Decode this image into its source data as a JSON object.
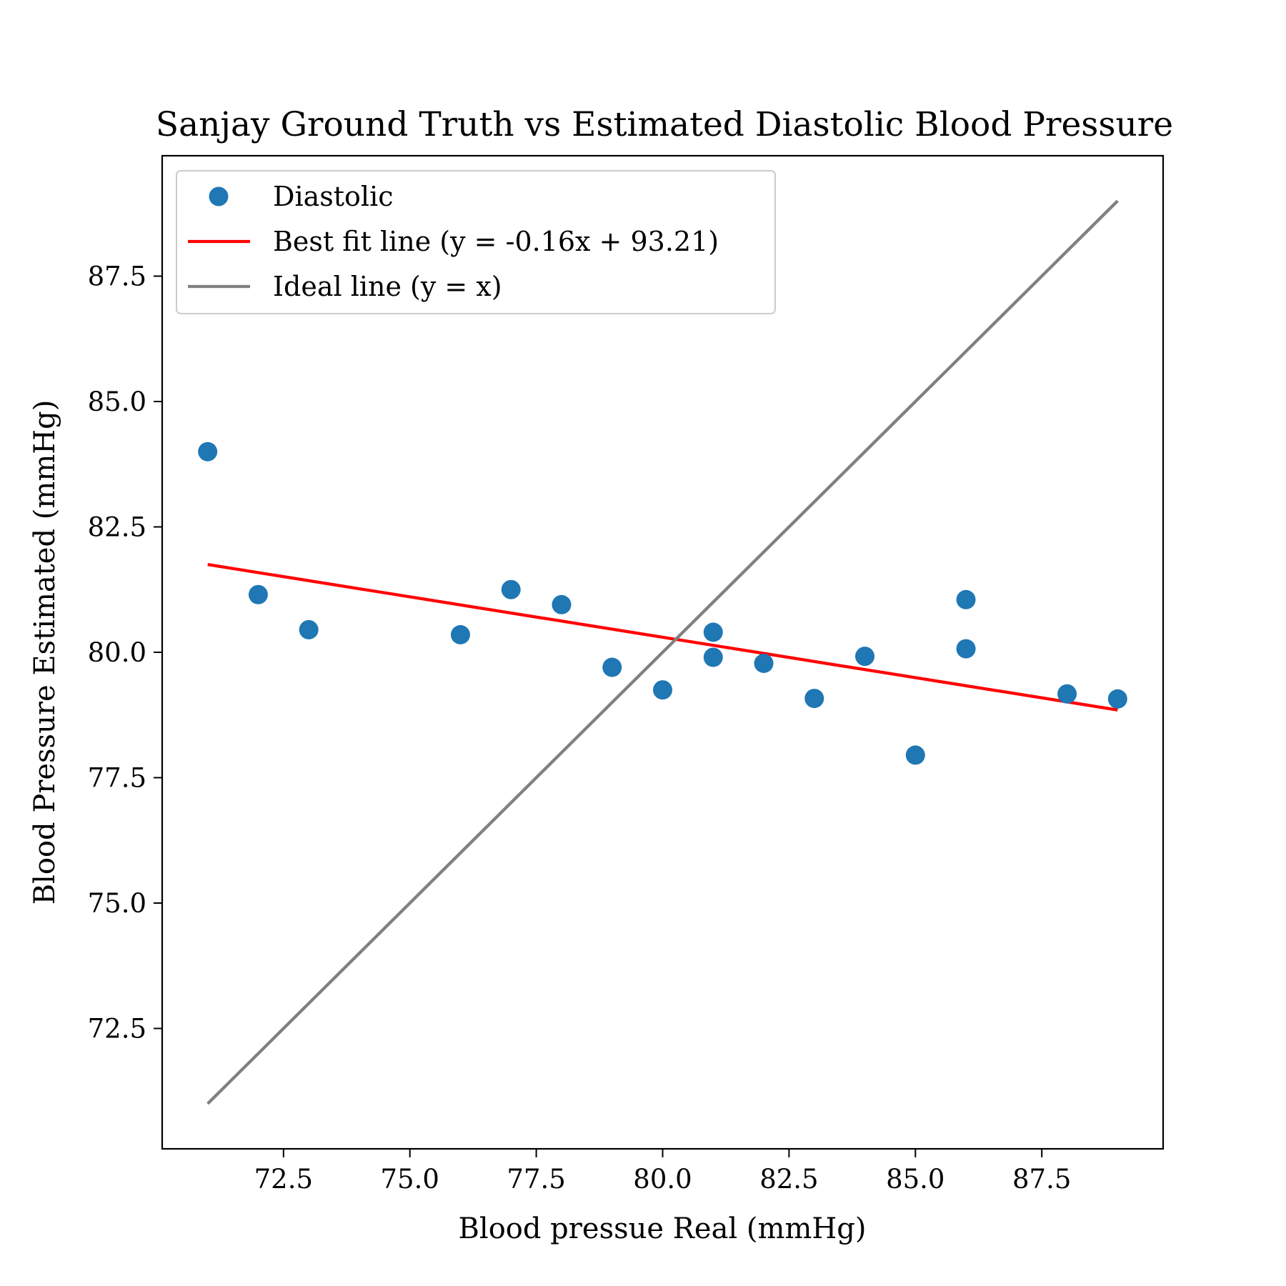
{
  "chart_data": {
    "type": "scatter",
    "title": "Sanjay Ground Truth vs Estimated Diastolic Blood Pressure",
    "xlabel": "Blood pressue Real (mmHg)",
    "ylabel": "Blood Pressure Estimated (mmHg)",
    "xlim": [
      70.1,
      89.9
    ],
    "ylim": [
      70.1,
      89.9
    ],
    "xticks": [
      "72.5",
      "75.0",
      "77.5",
      "80.0",
      "82.5",
      "85.0",
      "87.5"
    ],
    "yticks": [
      "72.5",
      "75.0",
      "77.5",
      "80.0",
      "82.5",
      "85.0",
      "87.5"
    ],
    "grid": false,
    "legend_position": "upper-left",
    "series": [
      {
        "name": "Diastolic",
        "kind": "scatter",
        "color": "#1f77b4",
        "points": [
          [
            71,
            84.0
          ],
          [
            72,
            81.15
          ],
          [
            73,
            80.45
          ],
          [
            76,
            80.35
          ],
          [
            77,
            81.25
          ],
          [
            78,
            80.95
          ],
          [
            79,
            79.7
          ],
          [
            80,
            79.25
          ],
          [
            81,
            80.4
          ],
          [
            81,
            79.9
          ],
          [
            82,
            79.78
          ],
          [
            83,
            79.08
          ],
          [
            84,
            79.92
          ],
          [
            85,
            77.95
          ],
          [
            86,
            81.05
          ],
          [
            86,
            80.07
          ],
          [
            88,
            79.17
          ],
          [
            89,
            79.07
          ]
        ]
      },
      {
        "name": "Best fit line (y = -0.16x + 93.21)",
        "kind": "line",
        "color": "#ff0000",
        "points": [
          [
            71,
            81.75
          ],
          [
            89,
            78.85
          ]
        ]
      },
      {
        "name": "Ideal line (y = x)",
        "kind": "line",
        "color": "#808080",
        "points": [
          [
            71,
            71
          ],
          [
            89,
            89
          ]
        ]
      }
    ]
  }
}
